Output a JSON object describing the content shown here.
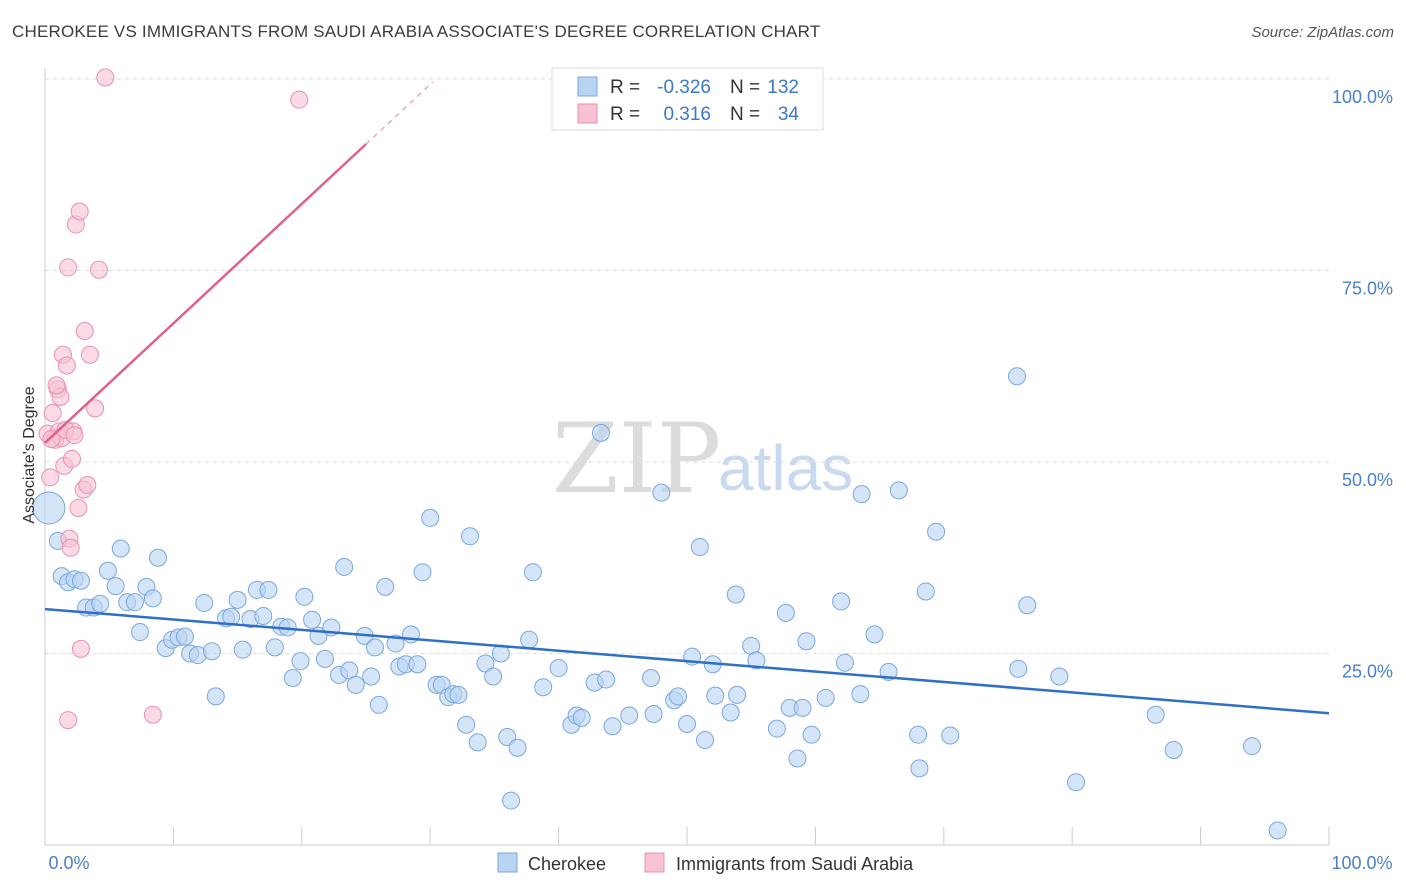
{
  "header": {
    "title": "CHEROKEE VS IMMIGRANTS FROM SAUDI ARABIA ASSOCIATE'S DEGREE CORRELATION CHART",
    "source": "Source: ZipAtlas.com"
  },
  "watermark": {
    "part1": "ZIP",
    "part2": "atlas"
  },
  "colors": {
    "cherokee_fill": "#b9d3f3",
    "cherokee_stroke": "#7aa7dc",
    "cherokee_line": "#2f6fc8",
    "saudi_fill": "#f7c2d2",
    "saudi_stroke": "#e892ae",
    "saudi_line": "#e0608c",
    "grid": "#dddddd",
    "tick_text": "#4a80c8"
  },
  "stats": {
    "row1": {
      "r_label": "R =",
      "r_value": "-0.326",
      "n_label": "N =",
      "n_value": "132"
    },
    "row2": {
      "r_label": "R =",
      "r_value": "0.316",
      "n_label": "N =",
      "n_value": "34"
    }
  },
  "chart_data": {
    "type": "scatter",
    "xlabel": "",
    "ylabel": "Associate's Degree",
    "xlim": [
      0,
      100
    ],
    "ylim": [
      0,
      100
    ],
    "x_tick_labels": [
      "0.0%",
      "100.0%"
    ],
    "y_tick_labels": [
      "25.0%",
      "50.0%",
      "75.0%",
      "100.0%"
    ],
    "y_ticks": [
      25,
      50,
      75,
      100
    ],
    "grid": true,
    "legend_position": "bottom",
    "series": [
      {
        "name": "Cherokee",
        "trend": {
          "x0": 0,
          "y0": 30.8,
          "x1": 100,
          "y1": 17.2
        },
        "points": [
          [
            0.3,
            44.0
          ],
          [
            1.0,
            39.7
          ],
          [
            1.3,
            35.1
          ],
          [
            1.8,
            34.3
          ],
          [
            2.3,
            34.7
          ],
          [
            2.8,
            34.5
          ],
          [
            3.2,
            31.0
          ],
          [
            3.8,
            31.0
          ],
          [
            4.3,
            31.5
          ],
          [
            4.9,
            35.8
          ],
          [
            5.5,
            33.8
          ],
          [
            5.9,
            38.7
          ],
          [
            6.4,
            31.7
          ],
          [
            7.0,
            31.7
          ],
          [
            7.4,
            27.8
          ],
          [
            7.9,
            33.7
          ],
          [
            8.4,
            32.2
          ],
          [
            8.8,
            37.5
          ],
          [
            9.4,
            25.7
          ],
          [
            9.9,
            26.8
          ],
          [
            10.4,
            27.1
          ],
          [
            10.9,
            27.2
          ],
          [
            11.3,
            25.0
          ],
          [
            11.9,
            24.8
          ],
          [
            12.4,
            31.6
          ],
          [
            13.0,
            25.3
          ],
          [
            13.3,
            19.4
          ],
          [
            14.1,
            29.6
          ],
          [
            14.5,
            29.8
          ],
          [
            15.0,
            32.0
          ],
          [
            15.4,
            25.5
          ],
          [
            16.0,
            29.5
          ],
          [
            16.5,
            33.3
          ],
          [
            17.0,
            29.9
          ],
          [
            17.4,
            33.3
          ],
          [
            17.9,
            25.8
          ],
          [
            18.4,
            28.5
          ],
          [
            18.9,
            28.4
          ],
          [
            19.3,
            21.8
          ],
          [
            19.9,
            24.0
          ],
          [
            20.2,
            32.4
          ],
          [
            20.8,
            29.4
          ],
          [
            21.3,
            27.3
          ],
          [
            21.8,
            24.3
          ],
          [
            22.3,
            28.4
          ],
          [
            22.9,
            22.2
          ],
          [
            23.3,
            36.3
          ],
          [
            23.7,
            22.8
          ],
          [
            24.2,
            20.9
          ],
          [
            24.9,
            27.3
          ],
          [
            25.4,
            22.0
          ],
          [
            25.7,
            25.8
          ],
          [
            26.0,
            18.3
          ],
          [
            26.5,
            33.7
          ],
          [
            27.3,
            26.3
          ],
          [
            27.6,
            23.3
          ],
          [
            28.1,
            23.6
          ],
          [
            28.5,
            27.5
          ],
          [
            29.0,
            23.6
          ],
          [
            29.4,
            35.6
          ],
          [
            30.0,
            42.7
          ],
          [
            30.5,
            20.9
          ],
          [
            30.9,
            20.9
          ],
          [
            31.4,
            19.3
          ],
          [
            31.8,
            19.7
          ],
          [
            32.2,
            19.6
          ],
          [
            32.8,
            15.7
          ],
          [
            33.1,
            40.3
          ],
          [
            33.7,
            13.4
          ],
          [
            34.3,
            23.7
          ],
          [
            34.9,
            22.0
          ],
          [
            35.5,
            25.0
          ],
          [
            36.0,
            14.1
          ],
          [
            36.3,
            5.8
          ],
          [
            36.8,
            12.7
          ],
          [
            37.7,
            26.8
          ],
          [
            38.0,
            35.6
          ],
          [
            38.8,
            20.6
          ],
          [
            40.0,
            23.1
          ],
          [
            41.0,
            15.7
          ],
          [
            41.4,
            16.9
          ],
          [
            41.8,
            16.6
          ],
          [
            42.8,
            21.2
          ],
          [
            43.3,
            53.8
          ],
          [
            43.7,
            21.6
          ],
          [
            44.2,
            15.5
          ],
          [
            45.5,
            16.9
          ],
          [
            47.2,
            21.8
          ],
          [
            47.4,
            17.1
          ],
          [
            48.0,
            46.0
          ],
          [
            49.0,
            18.9
          ],
          [
            49.3,
            19.4
          ],
          [
            50.0,
            15.8
          ],
          [
            50.4,
            24.6
          ],
          [
            51.0,
            38.9
          ],
          [
            51.4,
            13.7
          ],
          [
            52.0,
            23.6
          ],
          [
            52.2,
            19.5
          ],
          [
            53.4,
            17.3
          ],
          [
            53.9,
            19.6
          ],
          [
            53.8,
            32.7
          ],
          [
            55.0,
            26.0
          ],
          [
            55.4,
            24.1
          ],
          [
            57.0,
            15.2
          ],
          [
            57.7,
            30.3
          ],
          [
            58.0,
            17.9
          ],
          [
            58.6,
            11.3
          ],
          [
            59.3,
            26.6
          ],
          [
            59.7,
            14.4
          ],
          [
            60.8,
            19.2
          ],
          [
            62.0,
            31.8
          ],
          [
            62.3,
            23.8
          ],
          [
            63.5,
            19.7
          ],
          [
            63.6,
            45.8
          ],
          [
            64.6,
            27.5
          ],
          [
            65.7,
            22.6
          ],
          [
            66.5,
            46.3
          ],
          [
            68.0,
            14.4
          ],
          [
            68.1,
            10.0
          ],
          [
            68.6,
            33.1
          ],
          [
            69.4,
            40.9
          ],
          [
            70.5,
            14.3
          ],
          [
            75.7,
            61.2
          ],
          [
            75.8,
            23.0
          ],
          [
            76.5,
            31.3
          ],
          [
            79.0,
            22.0
          ],
          [
            80.3,
            8.2
          ],
          [
            86.5,
            17.0
          ],
          [
            87.9,
            12.4
          ],
          [
            94.0,
            12.9
          ],
          [
            96.0,
            1.9
          ],
          [
            59.0,
            17.9
          ]
        ]
      },
      {
        "name": "Immigrants from Saudi Arabia",
        "trend": {
          "x0": 0,
          "y0": 52.5,
          "x1": 25,
          "y1": 91.5
        },
        "points": [
          [
            0.2,
            53.7
          ],
          [
            0.4,
            48.0
          ],
          [
            0.6,
            56.4
          ],
          [
            0.8,
            52.9
          ],
          [
            1.0,
            59.5
          ],
          [
            1.1,
            54.0
          ],
          [
            1.2,
            58.5
          ],
          [
            1.3,
            53.1
          ],
          [
            1.4,
            64.0
          ],
          [
            1.5,
            49.5
          ],
          [
            1.7,
            62.6
          ],
          [
            1.8,
            75.4
          ],
          [
            1.9,
            40.0
          ],
          [
            2.0,
            38.8
          ],
          [
            2.1,
            50.4
          ],
          [
            2.2,
            54.0
          ],
          [
            2.4,
            81.0
          ],
          [
            2.6,
            44.0
          ],
          [
            2.7,
            82.7
          ],
          [
            2.8,
            25.6
          ],
          [
            3.0,
            46.4
          ],
          [
            3.1,
            67.1
          ],
          [
            3.3,
            47.0
          ],
          [
            3.5,
            64.0
          ],
          [
            3.9,
            57.0
          ],
          [
            4.2,
            75.1
          ],
          [
            4.7,
            100.2
          ],
          [
            1.8,
            16.3
          ],
          [
            8.4,
            17.0
          ],
          [
            19.8,
            97.3
          ],
          [
            0.5,
            53.0
          ],
          [
            1.6,
            54.2
          ],
          [
            2.3,
            53.5
          ],
          [
            0.9,
            60.0
          ]
        ]
      }
    ]
  },
  "legend": {
    "items": [
      "Cherokee",
      "Immigrants from Saudi Arabia"
    ]
  }
}
